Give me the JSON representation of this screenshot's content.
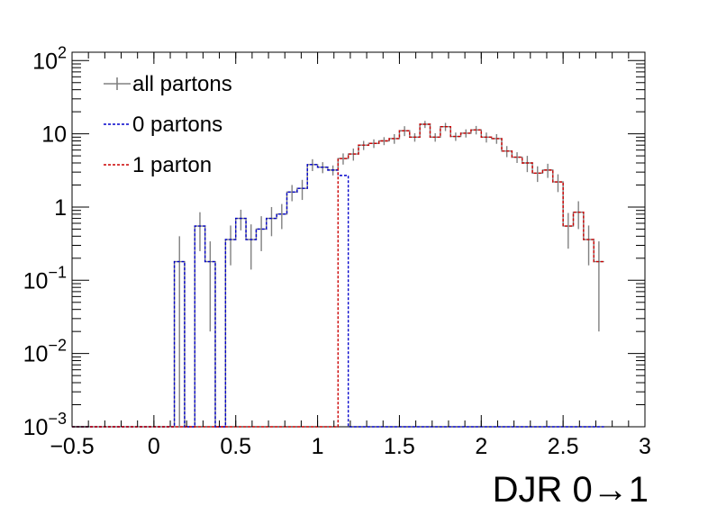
{
  "chart_data": {
    "type": "line",
    "title": "",
    "xlabel": "DJR 0→1",
    "ylabel": "",
    "xlim": [
      -0.5,
      3.0
    ],
    "ylim": [
      0.001,
      130
    ],
    "y_scale": "log",
    "grid": false,
    "legend_placement": "top-left",
    "x_tick_labels": [
      "−0.5",
      "0",
      "0.5",
      "1",
      "1.5",
      "2",
      "2.5",
      "3"
    ],
    "x_tick_values": [
      -0.5,
      0,
      0.5,
      1,
      1.5,
      2,
      2.5,
      3
    ],
    "y_tick_labels": [
      {
        "base": "10",
        "exp": "−3"
      },
      {
        "base": "10",
        "exp": "−2"
      },
      {
        "base": "10",
        "exp": "−1"
      },
      {
        "base": "1",
        "exp": ""
      },
      {
        "base": "10",
        "exp": ""
      },
      {
        "base": "10",
        "exp": "2"
      }
    ],
    "y_tick_values": [
      0.001,
      0.01,
      0.1,
      1,
      10,
      100
    ],
    "bin_width": 0.0625,
    "bin_start": -0.5,
    "series": [
      {
        "name": "all partons",
        "color": "#808080",
        "style": "solid",
        "values": [
          0.001,
          0.001,
          0.001,
          0.001,
          0.001,
          0.001,
          0.001,
          0.001,
          0.001,
          0.001,
          0.18,
          0.001,
          0.55,
          0.18,
          0.001,
          0.36,
          0.7,
          0.36,
          0.5,
          0.7,
          0.8,
          1.6,
          1.8,
          3.8,
          3.5,
          3.2,
          4.6,
          5.3,
          7.0,
          7.4,
          8.0,
          8.6,
          11.0,
          9.0,
          13.5,
          9.0,
          12.5,
          9.2,
          10.2,
          11.3,
          9.0,
          8.6,
          5.8,
          4.8,
          4.0,
          2.9,
          3.2,
          2.2,
          0.55,
          0.85,
          0.36,
          0.18
        ],
        "errors": [
          0,
          0,
          0,
          0,
          0,
          0,
          0,
          0,
          0,
          0,
          0.22,
          0,
          0.3,
          0.16,
          0,
          0.2,
          0.22,
          0.22,
          0.25,
          0.3,
          0.3,
          0.4,
          0.55,
          0.7,
          0.6,
          0.5,
          0.8,
          1.0,
          1.0,
          1.0,
          1.0,
          1.3,
          1.7,
          1.2,
          1.5,
          1.2,
          1.6,
          1.2,
          1.3,
          1.5,
          1.4,
          1.3,
          1.0,
          0.8,
          1.0,
          0.7,
          0.7,
          0.6,
          0.28,
          0.35,
          0.2,
          0.16
        ]
      },
      {
        "name": "0 partons",
        "color": "#0000cc",
        "style": "dotted",
        "values": [
          0.001,
          0.001,
          0.001,
          0.001,
          0.001,
          0.001,
          0.001,
          0.001,
          0.001,
          0.001,
          0.18,
          0.001,
          0.55,
          0.18,
          0.001,
          0.36,
          0.7,
          0.36,
          0.5,
          0.7,
          0.8,
          1.6,
          1.8,
          3.8,
          3.5,
          3.2,
          2.7,
          0.001,
          0.001,
          0.001,
          0.001,
          0.001,
          0.001,
          0.001,
          0.001,
          0.001,
          0.001,
          0.001,
          0.001,
          0.001,
          0.001,
          0.001,
          0.001,
          0.001,
          0.001,
          0.001,
          0.001,
          0.001,
          0.001,
          0.001,
          0.001,
          0.001
        ]
      },
      {
        "name": "1 parton",
        "color": "#cc0000",
        "style": "dotted",
        "values": [
          0.001,
          0.001,
          0.001,
          0.001,
          0.001,
          0.001,
          0.001,
          0.001,
          0.001,
          0.001,
          0.001,
          0.001,
          0.001,
          0.001,
          0.001,
          0.001,
          0.001,
          0.001,
          0.001,
          0.001,
          0.001,
          0.001,
          0.001,
          0.001,
          0.001,
          0.001,
          4.6,
          5.3,
          7.0,
          7.4,
          8.0,
          8.6,
          11.0,
          9.0,
          13.5,
          9.0,
          12.5,
          9.2,
          10.2,
          11.3,
          9.0,
          8.6,
          5.8,
          4.8,
          4.0,
          2.9,
          3.2,
          2.2,
          0.55,
          0.85,
          0.36,
          0.18
        ]
      }
    ]
  }
}
